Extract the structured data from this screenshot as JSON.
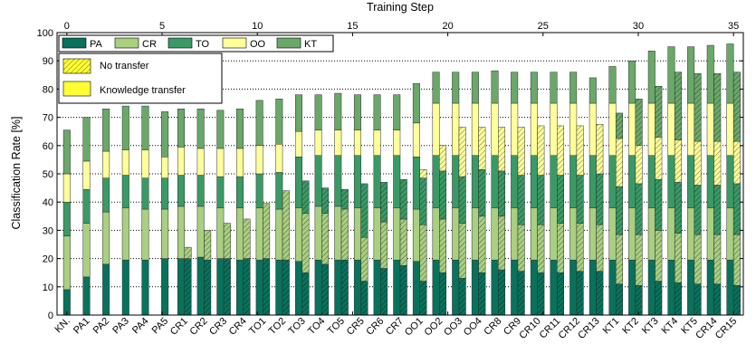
{
  "chart_data": {
    "type": "bar",
    "stacked": true,
    "grouped": true,
    "top_axis_label": "Training Step",
    "top_axis_range": [
      0,
      35
    ],
    "top_axis_ticks": [
      0,
      5,
      10,
      15,
      20,
      25,
      30,
      35
    ],
    "ylabel": "Classification Rate [%]",
    "ylim": [
      0,
      100
    ],
    "yticks": [
      0,
      10,
      20,
      30,
      40,
      50,
      60,
      70,
      80,
      90,
      100
    ],
    "grid": "horizontal dotted",
    "legend_placement": "top-left",
    "components": [
      {
        "name": "PA",
        "color": "#08725c"
      },
      {
        "name": "CR",
        "color": "#a9cf80"
      },
      {
        "name": "TO",
        "color": "#3a9a66"
      },
      {
        "name": "OO",
        "color": "#ffff9a"
      },
      {
        "name": "KT",
        "color": "#6aa86a"
      }
    ],
    "bar_types": [
      {
        "name": "No transfer",
        "hatched": true
      },
      {
        "name": "Knowledge transfer",
        "hatched": false
      }
    ],
    "categories": [
      "KN.",
      "PA1",
      "PA2",
      "PA3",
      "PA4",
      "PA5",
      "CR1",
      "CR2",
      "CR3",
      "CR4",
      "TO1",
      "TO2",
      "TO3",
      "TO4",
      "TO5",
      "CR5",
      "CR6",
      "CR7",
      "OO1",
      "OO2",
      "OO3",
      "OO4",
      "CR8",
      "CR9",
      "CR10",
      "CR11",
      "CR12",
      "CR13",
      "KT1",
      "KT2",
      "KT3",
      "KT4",
      "KT5",
      "CR14",
      "CR15"
    ],
    "knowledge_transfer": [
      [
        9,
        19,
        12,
        10,
        15.5
      ],
      [
        13.5,
        19,
        12,
        10,
        15.5
      ],
      [
        18,
        18.5,
        12,
        9.5,
        15
      ],
      [
        19.5,
        18.5,
        11.5,
        9,
        15.5
      ],
      [
        19.5,
        18,
        11,
        10,
        15.5
      ],
      [
        20,
        17.5,
        11,
        7.5,
        16
      ],
      [
        20,
        18.5,
        11,
        10,
        13.5
      ],
      [
        20.5,
        18,
        11,
        9.5,
        14
      ],
      [
        20,
        18,
        11,
        10,
        13.5
      ],
      [
        19.5,
        18.5,
        11,
        10,
        14
      ],
      [
        19.5,
        18.5,
        12,
        10,
        16
      ],
      [
        19.5,
        18,
        13,
        10,
        16
      ],
      [
        19,
        19,
        18,
        9,
        13
      ],
      [
        19.5,
        19,
        18,
        9,
        12.5
      ],
      [
        19.5,
        19,
        18,
        9,
        13
      ],
      [
        19.5,
        18.5,
        18.5,
        9,
        12.5
      ],
      [
        19.5,
        18.5,
        18.5,
        9,
        12.5
      ],
      [
        19.5,
        18.5,
        18.5,
        9,
        12.5
      ],
      [
        19,
        18.5,
        18.5,
        12,
        14
      ],
      [
        19.5,
        18.5,
        18.5,
        18.5,
        11
      ],
      [
        19.5,
        18.5,
        18.5,
        18.5,
        11
      ],
      [
        19.5,
        18.5,
        18.5,
        18.5,
        11
      ],
      [
        19.5,
        18.5,
        18.5,
        18.5,
        11.5
      ],
      [
        19.5,
        18.5,
        18.5,
        18.5,
        11
      ],
      [
        19.5,
        18.5,
        18.5,
        18.5,
        11
      ],
      [
        19.5,
        18.5,
        18.5,
        18.5,
        11
      ],
      [
        19.5,
        18.5,
        18.5,
        18.5,
        11
      ],
      [
        19.5,
        18.5,
        18.5,
        18.5,
        9
      ],
      [
        19.5,
        18.5,
        18.5,
        18.5,
        13
      ],
      [
        19.5,
        18.5,
        18.5,
        18.5,
        15
      ],
      [
        19.5,
        18.5,
        18.5,
        18.5,
        18.5
      ],
      [
        19.5,
        18.5,
        18.5,
        18.5,
        20
      ],
      [
        19.5,
        18.5,
        18.5,
        18.5,
        20
      ],
      [
        19.5,
        18.5,
        18.5,
        18.5,
        20.5
      ],
      [
        19.5,
        18.5,
        18.5,
        18.5,
        21
      ]
    ],
    "no_transfer": [
      null,
      null,
      null,
      null,
      null,
      null,
      [
        20,
        4,
        0,
        0,
        0
      ],
      [
        19.5,
        10.5,
        0,
        0,
        0
      ],
      [
        20,
        12.5,
        0,
        0,
        0
      ],
      [
        20,
        14,
        0,
        0,
        0
      ],
      [
        20,
        19.5,
        0,
        0,
        0
      ],
      [
        19.5,
        24.5,
        0,
        0,
        0
      ],
      [
        15,
        21,
        11.5,
        0,
        0
      ],
      [
        18,
        18,
        9,
        0,
        0
      ],
      [
        19.5,
        18,
        7,
        0,
        0
      ],
      [
        12,
        15.5,
        19,
        0,
        0
      ],
      [
        16.5,
        16.5,
        14,
        0,
        0
      ],
      [
        17.5,
        16.5,
        14,
        0,
        0
      ],
      [
        12,
        20,
        16.5,
        3,
        0
      ],
      [
        15,
        19,
        17,
        9,
        0
      ],
      [
        13,
        19.5,
        16.5,
        17.5,
        0
      ],
      [
        15,
        20,
        16.5,
        15,
        0
      ],
      [
        16,
        19,
        16,
        15.5,
        0
      ],
      [
        15.5,
        16.5,
        17.5,
        17,
        0
      ],
      [
        15,
        17,
        17.5,
        17.5,
        0
      ],
      [
        15,
        17.5,
        17,
        17.5,
        0
      ],
      [
        15.5,
        17,
        17,
        17.5,
        0
      ],
      [
        15.5,
        16.5,
        18,
        17.5,
        0
      ],
      [
        11,
        17.5,
        17,
        17,
        9
      ],
      [
        10.5,
        18,
        18,
        13.5,
        16.5
      ],
      [
        12,
        18,
        18,
        15,
        18
      ],
      [
        11.5,
        17.5,
        18,
        15,
        24
      ],
      [
        11,
        17.5,
        17.5,
        15.5,
        24
      ],
      [
        11,
        17.5,
        17.5,
        15.5,
        24
      ],
      [
        10.5,
        18,
        18,
        15,
        24.5
      ]
    ]
  }
}
